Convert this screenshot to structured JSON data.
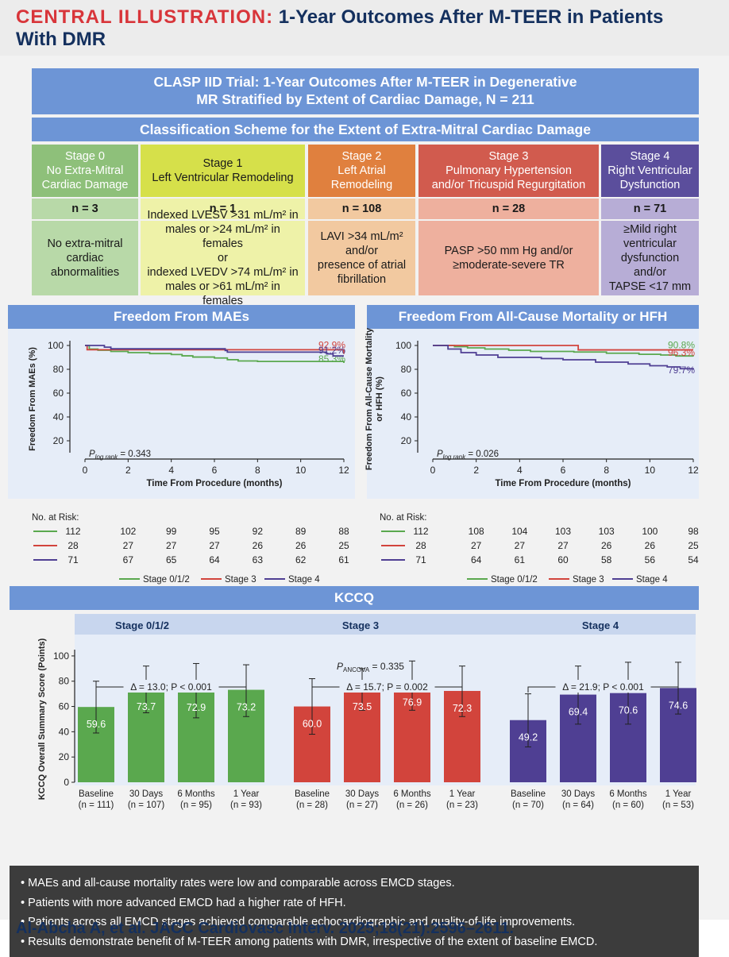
{
  "header": {
    "label": "CENTRAL ILLUSTRATION:",
    "title_line1": "1-Year Outcomes After M-TEER in Patients",
    "title_line2": "With DMR"
  },
  "trial_title": {
    "line1": "CLASP IID Trial: 1-Year Outcomes After M-TEER in Degenerative",
    "line2": "MR Stratified by Extent of Cardiac Damage, N = 211"
  },
  "classification_title": "Classification Scheme for the Extent of Extra-Mitral Cardiac Damage",
  "stages": [
    {
      "title": [
        "Stage 0",
        "No Extra-Mitral",
        "Cardiac Damage"
      ],
      "n": "n = 3",
      "desc": [
        "No extra-mitral",
        "cardiac",
        "abnormalities"
      ],
      "colors": {
        "head": "#8ec07a",
        "body": "#b8d9a8"
      }
    },
    {
      "title": [
        "Stage 1",
        "Left Ventricular Remodeling"
      ],
      "n": "n = 1",
      "desc": [
        "Indexed LVESV >31 mL/m² in",
        "males or >24 mL/m² in females",
        "or",
        "indexed LVEDV >74 mL/m² in",
        "males or >61 mL/m² in females"
      ],
      "colors": {
        "head": "#d6e04a",
        "body": "#eef2a8"
      }
    },
    {
      "title": [
        "Stage 2",
        "Left Atrial",
        "Remodeling"
      ],
      "n": "n = 108",
      "desc": [
        "LAVI >34 mL/m²",
        "and/or",
        "presence of atrial",
        "fibrillation"
      ],
      "colors": {
        "head": "#e0803e",
        "body": "#f2c9a0"
      }
    },
    {
      "title": [
        "Stage 3",
        "Pulmonary Hypertension",
        "and/or Tricuspid Regurgitation"
      ],
      "n": "n = 28",
      "desc": [
        "PASP >50 mm Hg and/or",
        "≥moderate-severe TR"
      ],
      "colors": {
        "head": "#d15b4e",
        "body": "#eeb09e"
      }
    },
    {
      "title": [
        "Stage 4",
        "Right Ventricular",
        "Dysfunction"
      ],
      "n": "n = 71",
      "desc": [
        "≥Mild right",
        "ventricular",
        "dysfunction and/or",
        "TAPSE <17 mm"
      ],
      "colors": {
        "head": "#5b4e9c",
        "body": "#b7add6"
      }
    }
  ],
  "colors": {
    "green": "#5aa84e",
    "red": "#d2443c",
    "purple": "#4f3f93",
    "blue_bar": "#6d95d6"
  },
  "no_at_risk_label": "No. at Risk:",
  "km_legend": [
    "Stage 0/1/2",
    "Stage 3",
    "Stage 4"
  ],
  "chart_data": [
    {
      "type": "line",
      "title": "Freedom From MAEs",
      "xlabel": "Time From Procedure (months)",
      "ylabel": "Freedom From MAEs (%)",
      "xlim": [
        0,
        12
      ],
      "ylim": [
        10,
        100
      ],
      "xticks": [
        0,
        2,
        4,
        6,
        8,
        10,
        12
      ],
      "yticks": [
        20,
        40,
        60,
        80,
        100
      ],
      "p_label": {
        "sub": "log rank",
        "value": "= 0.343"
      },
      "series": [
        {
          "name": "Stage 0/1/2",
          "color": "#5aa84e",
          "end_label": "85.3%",
          "points": [
            [
              0,
              100
            ],
            [
              0.2,
              97
            ],
            [
              0.6,
              96
            ],
            [
              1.2,
              95
            ],
            [
              2,
              94
            ],
            [
              3,
              93.2
            ],
            [
              4,
              92.4
            ],
            [
              4.5,
              91.3
            ],
            [
              5,
              90.3
            ],
            [
              6,
              89.5
            ],
            [
              6.6,
              88.1
            ],
            [
              7.1,
              87.0
            ],
            [
              8,
              86.6
            ],
            [
              12,
              85.3
            ]
          ],
          "at_risk": [
            "112",
            "102",
            "99",
            "95",
            "92",
            "89",
            "88"
          ]
        },
        {
          "name": "Stage 3",
          "color": "#d2443c",
          "end_label": "92.9%",
          "points": [
            [
              0,
              100
            ],
            [
              0.1,
              96.4
            ],
            [
              12,
              92.9
            ]
          ],
          "at_risk": [
            "28",
            "27",
            "27",
            "27",
            "26",
            "26",
            "25"
          ]
        },
        {
          "name": "Stage 4",
          "color": "#4f3f93",
          "end_label": "91.2%",
          "points": [
            [
              0,
              100
            ],
            [
              0.9,
              98.6
            ],
            [
              1.2,
              97.2
            ],
            [
              6.5,
              95.8
            ],
            [
              6.6,
              94.4
            ],
            [
              11.2,
              92.9
            ],
            [
              11.5,
              91.2
            ],
            [
              12,
              91.2
            ]
          ],
          "at_risk": [
            "71",
            "67",
            "65",
            "64",
            "63",
            "62",
            "61"
          ]
        }
      ]
    },
    {
      "type": "line",
      "title": "Freedom From All-Cause Mortality or HFH",
      "xlabel": "Time From Procedure (months)",
      "ylabel": "Freedom From All-Cause Mortality or HFH (%)",
      "xlim": [
        0,
        12
      ],
      "ylim": [
        10,
        100
      ],
      "xticks": [
        0,
        2,
        4,
        6,
        8,
        10,
        12
      ],
      "yticks": [
        20,
        40,
        60,
        80,
        100
      ],
      "p_label": {
        "sub": "log rank",
        "value": "= 0.026"
      },
      "series": [
        {
          "name": "Stage 0/1/2",
          "color": "#5aa84e",
          "end_label": "90.8%",
          "points": [
            [
              0,
              100
            ],
            [
              1,
              99
            ],
            [
              1.6,
              98
            ],
            [
              2.4,
              97
            ],
            [
              3.5,
              96
            ],
            [
              4.5,
              95
            ],
            [
              6.5,
              94.5
            ],
            [
              8,
              93.5
            ],
            [
              9.5,
              92.6
            ],
            [
              10.5,
              92
            ],
            [
              11.2,
              91.2
            ],
            [
              12,
              90.8
            ]
          ],
          "at_risk": [
            "112",
            "108",
            "104",
            "103",
            "103",
            "100",
            "98"
          ]
        },
        {
          "name": "Stage 3",
          "color": "#d2443c",
          "end_label": "96.3%",
          "points": [
            [
              0,
              100
            ],
            [
              6.6,
              100
            ],
            [
              6.7,
              96.3
            ],
            [
              12,
              96.3
            ]
          ],
          "at_risk": [
            "28",
            "27",
            "27",
            "27",
            "26",
            "26",
            "25"
          ]
        },
        {
          "name": "Stage 4",
          "color": "#4f3f93",
          "end_label": "79.7%",
          "points": [
            [
              0,
              100
            ],
            [
              0.7,
              97
            ],
            [
              1.3,
              94
            ],
            [
              2,
              92
            ],
            [
              3,
              90
            ],
            [
              5,
              89
            ],
            [
              6,
              88
            ],
            [
              7.5,
              86
            ],
            [
              9,
              84.5
            ],
            [
              10,
              83
            ],
            [
              10.8,
              82
            ],
            [
              11.4,
              80.5
            ],
            [
              12,
              79.7
            ]
          ],
          "at_risk": [
            "71",
            "64",
            "61",
            "60",
            "58",
            "56",
            "54"
          ]
        }
      ]
    },
    {
      "type": "bar",
      "title": "KCCQ",
      "ylabel": "KCCQ Overall Summary Score (Points)",
      "ylim": [
        0,
        110
      ],
      "yticks": [
        0,
        20,
        40,
        60,
        80,
        100
      ],
      "p_label": {
        "sub": "ANCOVA",
        "value": "= 0.335"
      },
      "categories": [
        "Baseline",
        "30 Days",
        "6 Months",
        "1 Year"
      ],
      "groups": [
        {
          "name": "Stage 0/1/2",
          "color": "#5aa84e",
          "values": [
            59.6,
            73.7,
            72.9,
            73.2
          ],
          "err_low": [
            39,
            55,
            51,
            52
          ],
          "err_high": [
            80,
            92,
            94,
            93
          ],
          "n_labels": [
            "(n = 111)",
            "(n = 107)",
            "(n = 95)",
            "(n = 93)"
          ],
          "delta": "Δ = 13.0; P < 0.001"
        },
        {
          "name": "Stage 3",
          "color": "#d2443c",
          "values": [
            60.0,
            73.5,
            76.9,
            72.3
          ],
          "err_low": [
            38,
            57,
            57,
            52
          ],
          "err_high": [
            82,
            90,
            96,
            92
          ],
          "n_labels": [
            "(n = 28)",
            "(n = 27)",
            "(n = 26)",
            "(n = 23)"
          ],
          "delta": "Δ = 15.7; P = 0.002"
        },
        {
          "name": "Stage 4",
          "color": "#4f3f93",
          "values": [
            49.2,
            69.4,
            70.6,
            74.6
          ],
          "err_low": [
            28,
            46,
            46,
            54
          ],
          "err_high": [
            70,
            92,
            95,
            95
          ],
          "n_labels": [
            "(n = 70)",
            "(n = 64)",
            "(n = 60)",
            "(n = 53)"
          ],
          "delta": "Δ = 21.9; P < 0.001"
        }
      ]
    }
  ],
  "summary_points": [
    "• MAEs and all-cause mortality rates were low and comparable across EMCD stages.",
    "• Patients with more advanced EMCD had a higher rate of HFH.",
    "• Patients across all EMCD stages achieved comparable echocardiographic and quality-of-life improvements.",
    "• Results demonstrate benefit of M-TEER among patients with DMR, irrespective of the extent of baseline EMCD."
  ],
  "citation": "Al-Abcha A, et al. JACC Cardiovasc Interv. 2025;18(21):2596–2611."
}
